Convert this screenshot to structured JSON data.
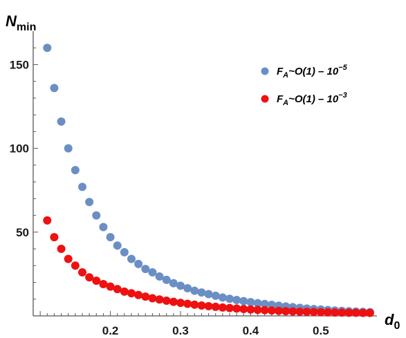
{
  "chart_data": {
    "type": "scatter",
    "xlabel": "d",
    "xlabel_sub": "0",
    "ylabel": "N",
    "ylabel_sub": "min",
    "xlim": [
      0.09,
      0.58
    ],
    "ylim": [
      0,
      170
    ],
    "xticks": [
      "0.2",
      "0.3",
      "0.4",
      "0.5"
    ],
    "yticks": [
      "50",
      "100",
      "150"
    ],
    "grid": false,
    "legend_position": "top-right",
    "series": [
      {
        "name": "F_A ~ O(1) - 10^-5",
        "legend_main": "F",
        "legend_sub": "A",
        "legend_mid": "~O(1) – 10",
        "legend_sup": "−5",
        "color": "#6b8fc4",
        "x": [
          0.11,
          0.12,
          0.13,
          0.14,
          0.15,
          0.16,
          0.17,
          0.18,
          0.19,
          0.2,
          0.21,
          0.22,
          0.23,
          0.24,
          0.25,
          0.26,
          0.27,
          0.28,
          0.29,
          0.3,
          0.31,
          0.32,
          0.33,
          0.34,
          0.35,
          0.36,
          0.37,
          0.38,
          0.39,
          0.4,
          0.41,
          0.42,
          0.43,
          0.44,
          0.45,
          0.46,
          0.47,
          0.48,
          0.49,
          0.5,
          0.51,
          0.52,
          0.53,
          0.54,
          0.55,
          0.56,
          0.57
        ],
        "y": [
          160,
          136,
          116,
          100,
          87,
          77,
          68,
          60,
          53,
          47,
          42,
          38,
          34,
          31,
          28,
          26,
          23.5,
          21.5,
          19.5,
          18,
          16.5,
          15,
          14,
          13,
          12,
          11,
          10.2,
          9.5,
          8.8,
          8.2,
          7.6,
          7.1,
          6.6,
          6.1,
          5.6,
          5.2,
          4.8,
          4.4,
          4.1,
          3.8,
          3.5,
          3.2,
          3,
          2.8,
          2.6,
          2.4,
          2.2
        ]
      },
      {
        "name": "F_A ~ O(1) - 10^-3",
        "legend_main": "F",
        "legend_sub": "A",
        "legend_mid": "~O(1) – 10",
        "legend_sup": "−3",
        "color": "#ee1111",
        "x": [
          0.11,
          0.12,
          0.13,
          0.14,
          0.15,
          0.16,
          0.17,
          0.18,
          0.19,
          0.2,
          0.21,
          0.22,
          0.23,
          0.24,
          0.25,
          0.26,
          0.27,
          0.28,
          0.29,
          0.3,
          0.31,
          0.32,
          0.33,
          0.34,
          0.35,
          0.36,
          0.37,
          0.38,
          0.39,
          0.4,
          0.41,
          0.42,
          0.43,
          0.44,
          0.45,
          0.46,
          0.47,
          0.48,
          0.49,
          0.5,
          0.51,
          0.52,
          0.53,
          0.54,
          0.55,
          0.56,
          0.57
        ],
        "y": [
          57,
          47,
          40,
          34,
          30,
          26,
          23,
          21,
          19,
          17.5,
          16,
          14.5,
          13.5,
          12.5,
          11.5,
          10.5,
          9.8,
          9.1,
          8.4,
          7.8,
          7.2,
          6.7,
          6.2,
          5.8,
          5.4,
          5,
          4.7,
          4.4,
          4.1,
          3.8,
          3.6,
          3.4,
          3.2,
          3,
          2.8,
          2.7,
          2.5,
          2.4,
          2.3,
          2.2,
          2.1,
          2,
          2,
          1.9,
          1.9,
          1.8,
          1.8
        ]
      }
    ]
  }
}
